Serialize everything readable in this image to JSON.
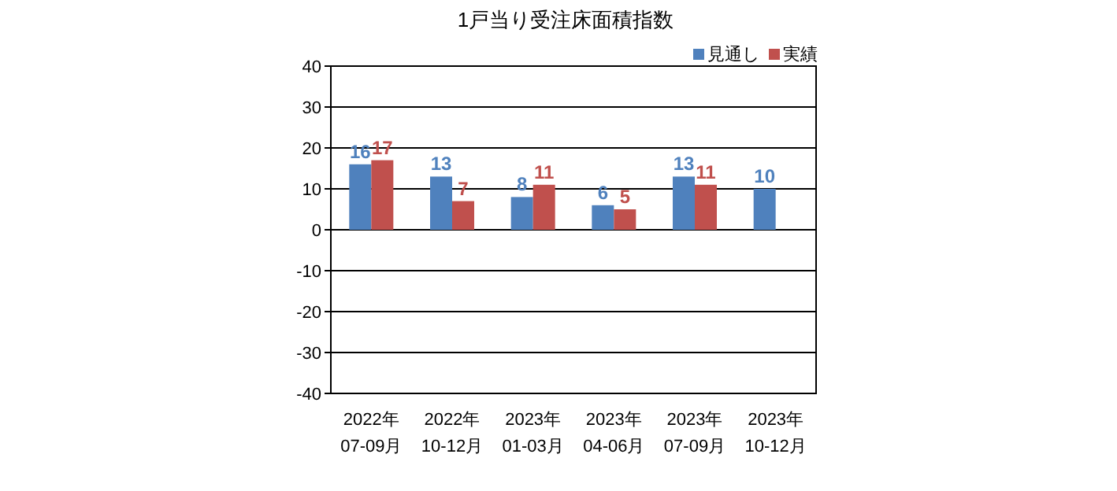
{
  "chart_data": {
    "type": "bar",
    "title": "1戸当り受注床面積指数",
    "categories": [
      "2022年\n07-09月",
      "2022年\n10-12月",
      "2023年\n01-03月",
      "2023年\n04-06月",
      "2023年\n07-09月",
      "2023年\n10-12月"
    ],
    "series": [
      {
        "name": "見通し",
        "color": "#4f81bd",
        "values": [
          16,
          13,
          8,
          6,
          13,
          10
        ]
      },
      {
        "name": "実績",
        "color": "#c0504d",
        "values": [
          17,
          7,
          11,
          5,
          11,
          null
        ]
      }
    ],
    "ylim": [
      -40,
      40
    ],
    "yticks": [
      -40,
      -30,
      -20,
      -10,
      0,
      10,
      20,
      30,
      40
    ],
    "grid": "y",
    "legend": "top right",
    "data_labels": true
  }
}
